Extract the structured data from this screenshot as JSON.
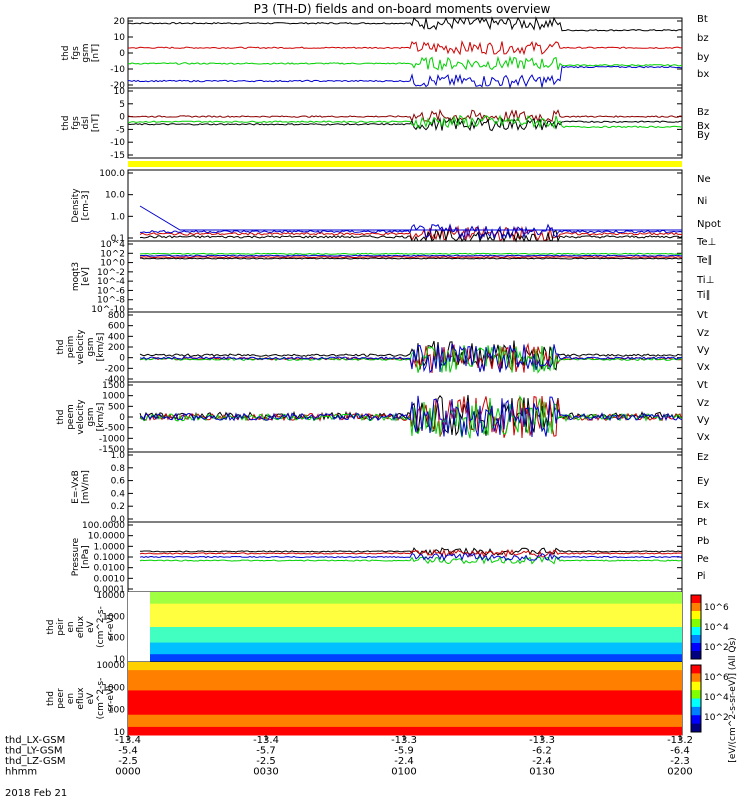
{
  "title": "P3 (TH-D) fields and on-board moments overview",
  "date_label": "2018 Feb 21",
  "footer_rows": [
    {
      "label": "thd_LX-GSM",
      "values": [
        "-13.4",
        "-13.4",
        "-13.3",
        "-13.3",
        "-13.2"
      ]
    },
    {
      "label": "thd_LY-GSM",
      "values": [
        "-5.4",
        "-5.7",
        "-5.9",
        "-6.2",
        "-6.4"
      ]
    },
    {
      "label": "thd_LZ-GSM",
      "values": [
        "-2.5",
        "-2.5",
        "-2.4",
        "-2.4",
        "-2.3"
      ]
    },
    {
      "label": "hhmm",
      "values": [
        "0000",
        "0030",
        "0100",
        "0130",
        "0200"
      ]
    }
  ],
  "colors": {
    "black": "#000000",
    "red": "#d00000",
    "green": "#00d000",
    "blue": "#0000d0",
    "darkred": "#8b0000",
    "yellow": "#ffff00"
  },
  "chart_data": [
    {
      "type": "line",
      "ylabel": [
        "thd",
        "fgs",
        "gsm",
        "[nT]"
      ],
      "ylim": [
        -20,
        20
      ],
      "ticks": [
        "20",
        "10",
        "0",
        "-10",
        "-20"
      ],
      "series": [
        {
          "name": "Bt",
          "color": "#000000",
          "base": 17,
          "late": 13
        },
        {
          "name": "bz",
          "color": "#d00000",
          "base": 3,
          "late": 3
        },
        {
          "name": "by",
          "color": "#00d000",
          "base": -6,
          "late": -7
        },
        {
          "name": "bx",
          "color": "#0000d0",
          "base": -16,
          "late": -8
        }
      ]
    },
    {
      "type": "line",
      "ylabel": [
        "thd",
        "fgs",
        "dsl",
        "[nT]"
      ],
      "ylim": [
        -17,
        10
      ],
      "ticks": [
        "10",
        "5",
        "0",
        "-5",
        "-10",
        "-15"
      ],
      "series": [
        {
          "name": "Bz",
          "color": "#8b0000",
          "base": -1,
          "late": -1
        },
        {
          "name": "Bx",
          "color": "#000000",
          "base": -4,
          "late": -3
        },
        {
          "name": "By",
          "color": "#00d000",
          "base": -3,
          "late": -5
        }
      ]
    },
    {
      "type": "line",
      "ylabel": [
        "Density",
        "[cm-3]"
      ],
      "ylim_log": [
        -1,
        2
      ],
      "ticks": [
        "100.0",
        "10.0",
        "1.0",
        "0.1"
      ],
      "series": [
        {
          "name": "Ne",
          "color": "#d00000",
          "base": 0.2
        },
        {
          "name": "Ni",
          "color": "#000000",
          "base": 0.15
        },
        {
          "name": "Npot",
          "color": "#0000d0",
          "base": 0.25
        }
      ]
    },
    {
      "type": "line",
      "ylabel": [
        "moqt3",
        "[eV]"
      ],
      "ylim_log": [
        -10,
        5
      ],
      "ticks": [
        "10^4",
        "10^2",
        "10^0",
        "10^-2",
        "10^-4",
        "10^-6",
        "10^-8",
        "10^-10"
      ],
      "series": [
        {
          "name": "Te⊥",
          "color": "#d00000"
        },
        {
          "name": "Te∥",
          "color": "#000000"
        },
        {
          "name": "Ti⊥",
          "color": "#0000d0"
        },
        {
          "name": "Ti∥",
          "color": "#00d000"
        }
      ]
    },
    {
      "type": "line",
      "ylabel": [
        "thd",
        "peim",
        "velocity",
        "gsm",
        "[km/s]"
      ],
      "ylim": [
        -400,
        800
      ],
      "ticks": [
        "800",
        "600",
        "400",
        "200",
        "0",
        "-200",
        "-400"
      ],
      "series": [
        {
          "name": "Vt",
          "color": "#000000"
        },
        {
          "name": "Vz",
          "color": "#d00000"
        },
        {
          "name": "Vy",
          "color": "#00d000"
        },
        {
          "name": "Vx",
          "color": "#0000d0"
        }
      ]
    },
    {
      "type": "line",
      "ylabel": [
        "thd",
        "peem",
        "velocity",
        "gsm",
        "[km/s]"
      ],
      "ylim": [
        -1500,
        1500
      ],
      "ticks": [
        "1500",
        "1000",
        "500",
        "0",
        "-500",
        "-1000",
        "-1500"
      ],
      "series": [
        {
          "name": "Vt",
          "color": "#000000"
        },
        {
          "name": "Vz",
          "color": "#d00000"
        },
        {
          "name": "Vy",
          "color": "#00d000"
        },
        {
          "name": "Vx",
          "color": "#0000d0"
        }
      ]
    },
    {
      "type": "line",
      "ylabel": [
        "E=-VxB",
        "[mV/m]"
      ],
      "ylim": [
        0,
        1
      ],
      "ticks": [
        "1.0",
        "0.8",
        "0.6",
        "0.4",
        "0.2",
        "0.0"
      ],
      "series": [
        {
          "name": "Ez",
          "color": "#d00000"
        },
        {
          "name": "Ey",
          "color": "#00d000"
        },
        {
          "name": "Ex",
          "color": "#0000d0"
        }
      ]
    },
    {
      "type": "line",
      "ylabel": [
        "Pressure",
        "[nPa]"
      ],
      "ylim_log": [
        -4,
        2
      ],
      "ticks": [
        "100.0000",
        "10.0000",
        "1.0000",
        "0.1000",
        "0.0100",
        "0.0010",
        "0.0001"
      ],
      "series": [
        {
          "name": "Pt",
          "color": "#000000",
          "base": 0.3
        },
        {
          "name": "Pb",
          "color": "#d00000",
          "base": 0.2
        },
        {
          "name": "Pe",
          "color": "#00d000",
          "base": 0.05
        },
        {
          "name": "Pi",
          "color": "#0000d0",
          "base": 0.1
        }
      ]
    },
    {
      "type": "heatmap",
      "ylabel": [
        "thd",
        "peir",
        "en",
        "eflux",
        "eV",
        "(cm^2-s-",
        "sr-eV)"
      ],
      "ticks": [
        "10000",
        "1000",
        "100",
        "10"
      ],
      "colorbar": {
        "label": "[eV/(cm^2-s-sr-eV)] (All Qs)",
        "ticks": [
          "10^6",
          "10^4",
          "10^2"
        ]
      }
    },
    {
      "type": "heatmap",
      "ylabel": [
        "thd",
        "peer",
        "en",
        "eflux",
        "eV",
        "(cm^2-s-",
        "sr-eV)"
      ],
      "ticks": [
        "10000",
        "1000",
        "100",
        "10"
      ],
      "colorbar": {
        "label": "[eV/(cm^2-s-sr-eV)]",
        "ticks": [
          "10^6",
          "10^4",
          "10^2"
        ]
      }
    }
  ]
}
